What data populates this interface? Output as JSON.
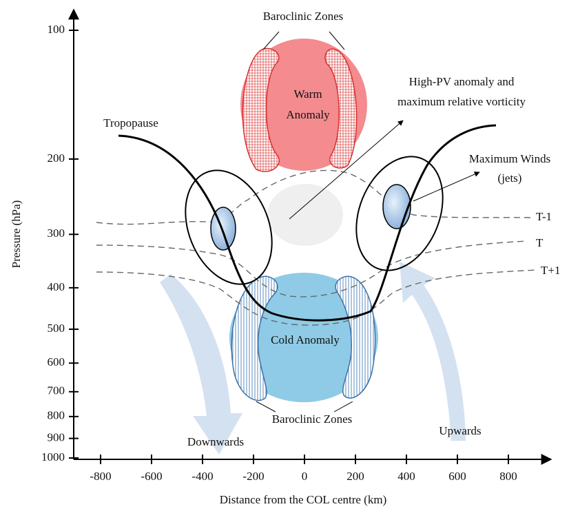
{
  "axes": {
    "y": {
      "label": "Pressure (hPa)",
      "scale": "log",
      "ticks": [
        100,
        200,
        300,
        400,
        500,
        600,
        700,
        800,
        900,
        1000
      ]
    },
    "x": {
      "label": "Distance from the COL centre (km)",
      "scale": "linear",
      "ticks": [
        -800,
        -600,
        -400,
        -200,
        0,
        200,
        400,
        600,
        800
      ]
    }
  },
  "labels": {
    "baroclinic_top": "Baroclinic Zones",
    "warm": [
      "Warm",
      "Anomaly"
    ],
    "high_pv": [
      "High-PV anomaly and",
      "maximum relative vorticity"
    ],
    "tropopause": "Tropopause",
    "max_winds": [
      "Maximum Winds",
      "(jets)"
    ],
    "t_minus": "T-1",
    "t": "T",
    "t_plus": "T+1",
    "cold": "Cold Anomaly",
    "baroclinic_bottom": "Baroclinic Zones",
    "downwards": "Downwards",
    "upwards": "Upwards"
  }
}
